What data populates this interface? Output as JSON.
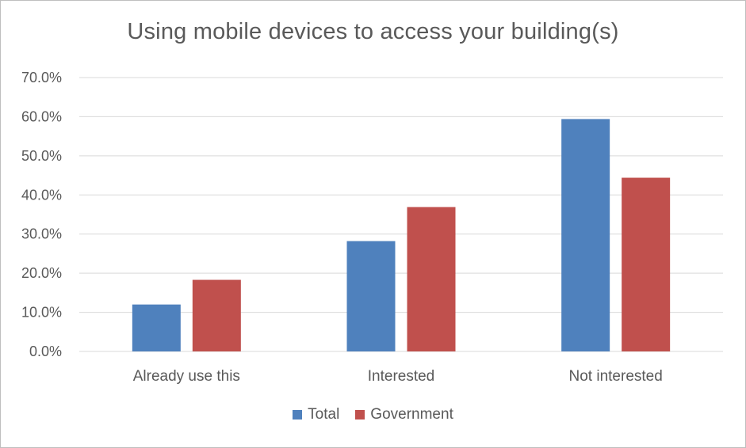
{
  "chart_data": {
    "type": "bar",
    "title": "Using mobile devices to access your building(s)",
    "categories": [
      "Already use this",
      "Interested",
      "Not interested"
    ],
    "series": [
      {
        "name": "Total",
        "color": "#4f81bd",
        "values": [
          12.0,
          28.2,
          59.4
        ]
      },
      {
        "name": "Government",
        "color": "#c0504d",
        "values": [
          18.3,
          36.9,
          44.4
        ]
      }
    ],
    "y_ticks": [
      "0.0%",
      "10.0%",
      "20.0%",
      "30.0%",
      "40.0%",
      "50.0%",
      "60.0%",
      "70.0%"
    ],
    "ylim": [
      0,
      70
    ],
    "grid": true,
    "legend_position": "bottom",
    "xlabel": "",
    "ylabel": ""
  }
}
